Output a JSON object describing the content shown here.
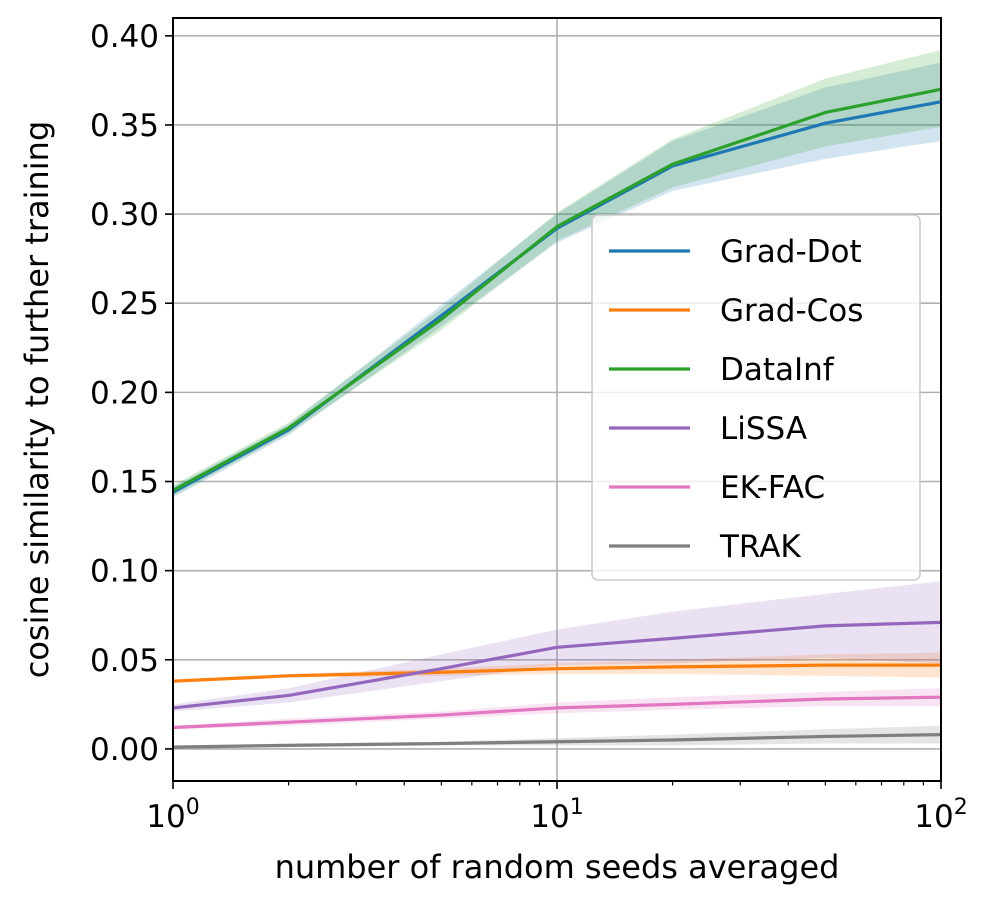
{
  "chart_data": {
    "type": "line",
    "title": "",
    "xlabel": "number of random seeds averaged",
    "ylabel": "cosine similarity to further training",
    "xscale": "log",
    "xlim": [
      1,
      100
    ],
    "ylim": [
      -0.018,
      0.41
    ],
    "grid": true,
    "legend_position": "center-right",
    "x": [
      1,
      2,
      5,
      10,
      20,
      50,
      100
    ],
    "xticks": [
      {
        "value": 1,
        "base": "10",
        "exp": "0"
      },
      {
        "value": 10,
        "base": "10",
        "exp": "1"
      },
      {
        "value": 100,
        "base": "10",
        "exp": "2"
      }
    ],
    "yticks": [
      {
        "value": 0.0,
        "label": "0.00"
      },
      {
        "value": 0.05,
        "label": "0.05"
      },
      {
        "value": 0.1,
        "label": "0.10"
      },
      {
        "value": 0.15,
        "label": "0.15"
      },
      {
        "value": 0.2,
        "label": "0.20"
      },
      {
        "value": 0.25,
        "label": "0.25"
      },
      {
        "value": 0.3,
        "label": "0.30"
      },
      {
        "value": 0.35,
        "label": "0.35"
      },
      {
        "value": 0.4,
        "label": "0.40"
      }
    ],
    "series": [
      {
        "name": "Grad-Dot",
        "color": "#1f77b4",
        "values": [
          0.144,
          0.179,
          0.243,
          0.292,
          0.327,
          0.351,
          0.363
        ],
        "lower": [
          0.141,
          0.176,
          0.237,
          0.284,
          0.313,
          0.331,
          0.341
        ],
        "upper": [
          0.147,
          0.182,
          0.249,
          0.3,
          0.341,
          0.371,
          0.385
        ]
      },
      {
        "name": "Grad-Cos",
        "color": "#ff7f0e",
        "values": [
          0.038,
          0.041,
          0.043,
          0.045,
          0.046,
          0.047,
          0.047
        ],
        "lower": [
          0.037,
          0.04,
          0.041,
          0.042,
          0.042,
          0.041,
          0.04
        ],
        "upper": [
          0.039,
          0.042,
          0.045,
          0.048,
          0.05,
          0.053,
          0.054
        ]
      },
      {
        "name": "DataInf",
        "color": "#2ca02c",
        "values": [
          0.145,
          0.18,
          0.241,
          0.293,
          0.328,
          0.357,
          0.37
        ],
        "lower": [
          0.142,
          0.177,
          0.235,
          0.285,
          0.315,
          0.338,
          0.349
        ],
        "upper": [
          0.148,
          0.183,
          0.247,
          0.301,
          0.342,
          0.376,
          0.392
        ]
      },
      {
        "name": "LiSSA",
        "color": "#9467bd",
        "values": [
          0.023,
          0.03,
          0.045,
          0.057,
          0.062,
          0.069,
          0.071
        ],
        "lower": [
          0.021,
          0.026,
          0.038,
          0.047,
          0.048,
          0.051,
          0.048
        ],
        "upper": [
          0.025,
          0.034,
          0.053,
          0.067,
          0.077,
          0.087,
          0.094
        ]
      },
      {
        "name": "EK-FAC",
        "color": "#e377c2",
        "values": [
          0.012,
          0.015,
          0.019,
          0.023,
          0.025,
          0.028,
          0.029
        ],
        "lower": [
          0.011,
          0.013,
          0.017,
          0.02,
          0.022,
          0.024,
          0.024
        ],
        "upper": [
          0.013,
          0.017,
          0.021,
          0.026,
          0.029,
          0.032,
          0.034
        ]
      },
      {
        "name": "TRAK",
        "color": "#7f7f7f",
        "values": [
          0.001,
          0.002,
          0.003,
          0.004,
          0.005,
          0.007,
          0.008
        ],
        "lower": [
          0.0,
          0.001,
          0.002,
          0.002,
          0.002,
          0.003,
          0.003
        ],
        "upper": [
          0.002,
          0.003,
          0.004,
          0.006,
          0.008,
          0.011,
          0.013
        ]
      }
    ]
  }
}
